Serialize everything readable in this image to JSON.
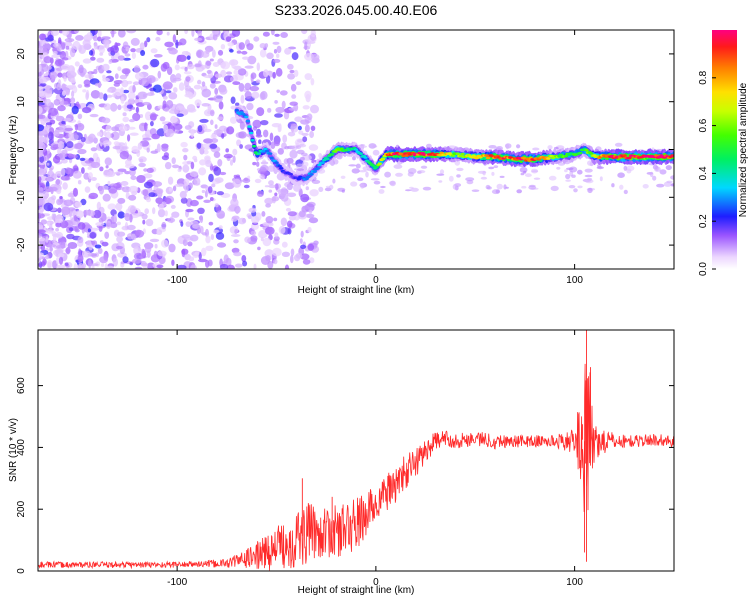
{
  "chart_data": [
    {
      "type": "heatmap",
      "title": "S233.2026.045.00.40.E06",
      "xlabel": "Height of straight line (km)",
      "ylabel": "Frequency (Hz)",
      "xlim": [
        -170,
        150
      ],
      "ylim": [
        -25,
        25
      ],
      "xticks": [
        -100,
        0,
        100
      ],
      "yticks": [
        -20,
        -10,
        0,
        10,
        20
      ],
      "colorbar": {
        "label": "Normalized spectral amplitude",
        "range": [
          0,
          1
        ],
        "ticks": [
          "0.0",
          "0.2",
          "0.4",
          "0.6",
          "0.8"
        ],
        "tick_values": [
          0.0,
          0.2,
          0.4,
          0.6,
          0.8
        ]
      },
      "signal_trace": {
        "x": [
          -70,
          -65,
          -60,
          -55,
          -50,
          -45,
          -40,
          -35,
          -30,
          -25,
          -20,
          -15,
          -10,
          -5,
          0,
          5,
          10,
          20,
          30,
          40,
          50,
          60,
          70,
          80,
          90,
          100,
          105,
          110,
          120,
          130,
          140,
          150
        ],
        "freq": [
          8,
          7,
          -1,
          0,
          -3,
          -5,
          -6,
          -6,
          -4,
          -2,
          0,
          0,
          0,
          -2,
          -4,
          -1,
          -1,
          -1,
          -1,
          -1,
          -1.5,
          -1.5,
          -2,
          -2,
          -1.5,
          -1,
          0,
          -1.5,
          -1.5,
          -1.5,
          -1.5,
          -1.5
        ],
        "amplitude": [
          0.3,
          0.3,
          0.5,
          0.3,
          0.3,
          0.2,
          0.2,
          0.3,
          0.3,
          0.4,
          0.6,
          0.5,
          0.4,
          0.4,
          0.5,
          0.8,
          1.0,
          0.95,
          0.9,
          0.6,
          0.7,
          0.9,
          0.9,
          0.95,
          0.6,
          0.5,
          0.5,
          0.7,
          1.0,
          1.0,
          1.0,
          0.95
        ]
      }
    },
    {
      "type": "line",
      "xlabel": "Height of straight line (km)",
      "ylabel": "SNR (10 * v/v)",
      "xlim": [
        -170,
        150
      ],
      "ylim": [
        0,
        780
      ],
      "xticks": [
        -100,
        0,
        100
      ],
      "yticks": [
        0,
        200,
        400,
        600
      ],
      "series": [
        {
          "name": "SNR",
          "color": "#ff2a2a",
          "x": [
            -170,
            -150,
            -130,
            -110,
            -90,
            -75,
            -65,
            -55,
            -45,
            -38,
            -32,
            -25,
            -18,
            -10,
            -5,
            0,
            5,
            10,
            15,
            20,
            25,
            30,
            35,
            40,
            50,
            60,
            70,
            80,
            90,
            100,
            103,
            105,
            107,
            110,
            120,
            130,
            140,
            150
          ],
          "mean": [
            20,
            20,
            20,
            20,
            22,
            25,
            40,
            60,
            90,
            110,
            130,
            120,
            130,
            150,
            180,
            220,
            250,
            280,
            320,
            350,
            390,
            420,
            430,
            420,
            430,
            420,
            420,
            420,
            420,
            420,
            430,
            420,
            400,
            420,
            420,
            420,
            425,
            420
          ],
          "noise": [
            10,
            10,
            10,
            10,
            10,
            15,
            30,
            60,
            80,
            110,
            90,
            80,
            90,
            90,
            80,
            60,
            60,
            60,
            60,
            50,
            40,
            30,
            25,
            25,
            25,
            25,
            20,
            20,
            20,
            40,
            150,
            250,
            300,
            60,
            25,
            20,
            20,
            20
          ],
          "spikes": [
            {
              "x": -37,
              "y": 300
            },
            {
              "x": -22,
              "y": 240
            },
            {
              "x": 104,
              "y": 475
            },
            {
              "x": 106,
              "y": 780
            },
            {
              "x": 106,
              "y": 30
            },
            {
              "x": 108,
              "y": 660
            },
            {
              "x": 105,
              "y": 60
            }
          ]
        }
      ]
    }
  ]
}
